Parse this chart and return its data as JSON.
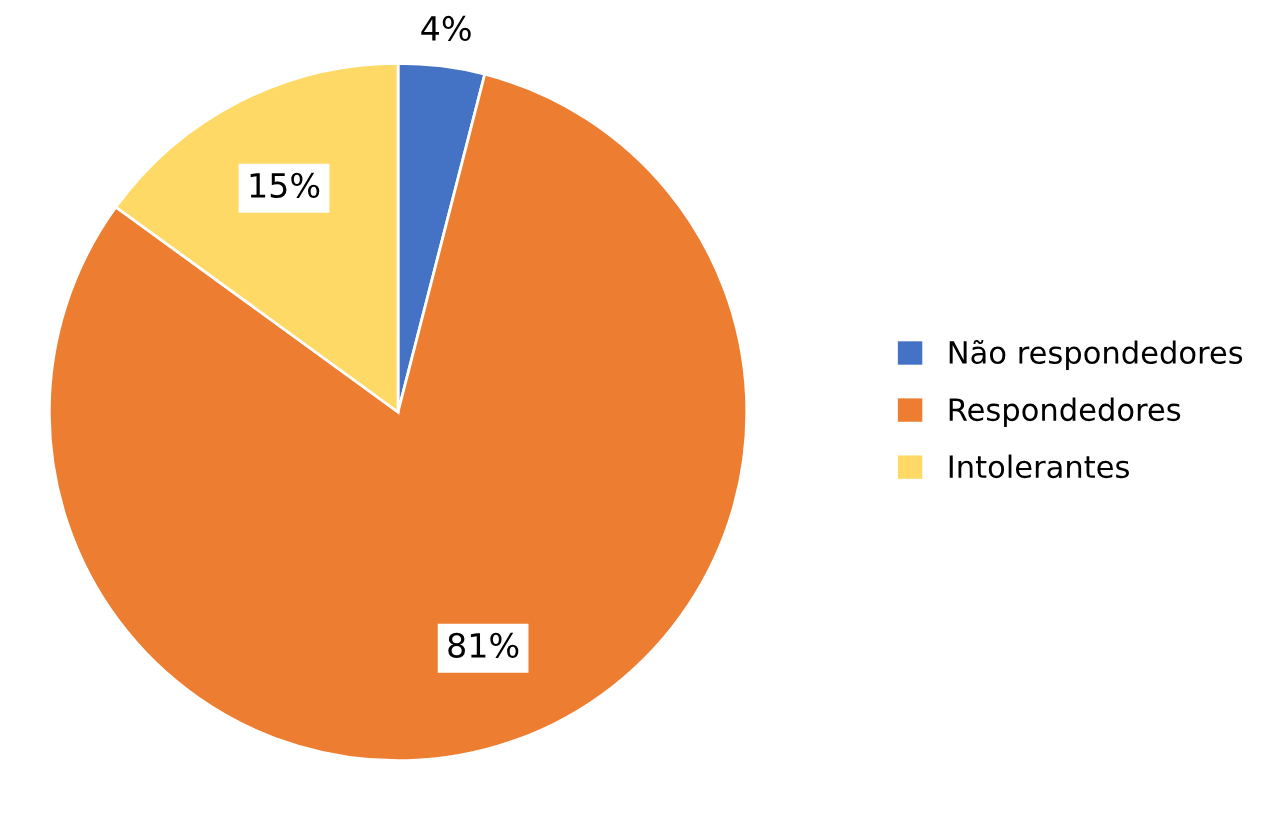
{
  "chart_data": {
    "type": "pie",
    "categories": [
      "Não respondedores",
      "Respondedores",
      "Intolerantes"
    ],
    "values": [
      4,
      81,
      15
    ],
    "colors": [
      "#4472c4",
      "#ed7d31",
      "#ffd966"
    ],
    "value_labels": [
      "4%",
      "81%",
      "15%"
    ],
    "legend": "right"
  }
}
